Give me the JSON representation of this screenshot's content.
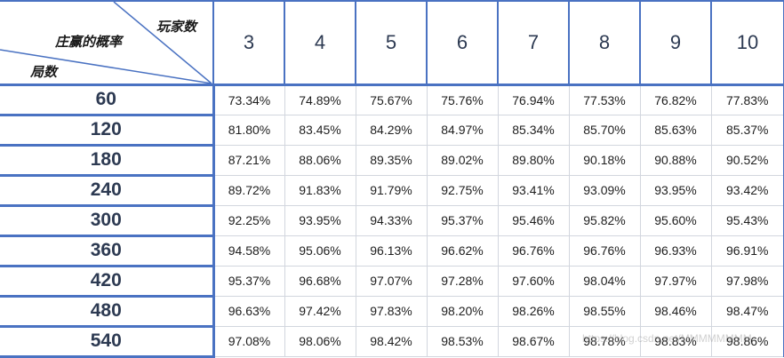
{
  "table": {
    "corner": {
      "top_right_label": "玩家数",
      "middle_label": "庄赢的概率",
      "bottom_left_label": "局数"
    },
    "columns": [
      "3",
      "4",
      "5",
      "6",
      "7",
      "8",
      "9",
      "10"
    ],
    "rows": [
      {
        "label": "60",
        "values": [
          "73.34%",
          "74.89%",
          "75.67%",
          "75.76%",
          "76.94%",
          "77.53%",
          "76.82%",
          "77.83%"
        ]
      },
      {
        "label": "120",
        "values": [
          "81.80%",
          "83.45%",
          "84.29%",
          "84.97%",
          "85.34%",
          "85.70%",
          "85.63%",
          "85.37%"
        ]
      },
      {
        "label": "180",
        "values": [
          "87.21%",
          "88.06%",
          "89.35%",
          "89.02%",
          "89.80%",
          "90.18%",
          "90.88%",
          "90.52%"
        ]
      },
      {
        "label": "240",
        "values": [
          "89.72%",
          "91.83%",
          "91.79%",
          "92.75%",
          "93.41%",
          "93.09%",
          "93.95%",
          "93.42%"
        ]
      },
      {
        "label": "300",
        "values": [
          "92.25%",
          "93.95%",
          "94.33%",
          "95.37%",
          "95.46%",
          "95.82%",
          "95.60%",
          "95.43%"
        ]
      },
      {
        "label": "360",
        "values": [
          "94.58%",
          "95.06%",
          "96.13%",
          "96.62%",
          "96.76%",
          "96.76%",
          "96.93%",
          "96.91%"
        ]
      },
      {
        "label": "420",
        "values": [
          "95.37%",
          "96.68%",
          "97.07%",
          "97.28%",
          "97.60%",
          "98.04%",
          "97.97%",
          "97.98%"
        ]
      },
      {
        "label": "480",
        "values": [
          "96.63%",
          "97.42%",
          "97.83%",
          "98.20%",
          "98.26%",
          "98.55%",
          "98.46%",
          "98.47%"
        ]
      },
      {
        "label": "540",
        "values": [
          "97.08%",
          "98.06%",
          "98.42%",
          "98.53%",
          "98.67%",
          "98.78%",
          "98.83%",
          "98.86%"
        ]
      }
    ]
  },
  "colors": {
    "border_accent": "#4a72c2",
    "header_text": "#2d3a52",
    "grid_line": "#d2d6de"
  },
  "watermark": "https://blog.csdn.net/MMMMMMMM"
}
